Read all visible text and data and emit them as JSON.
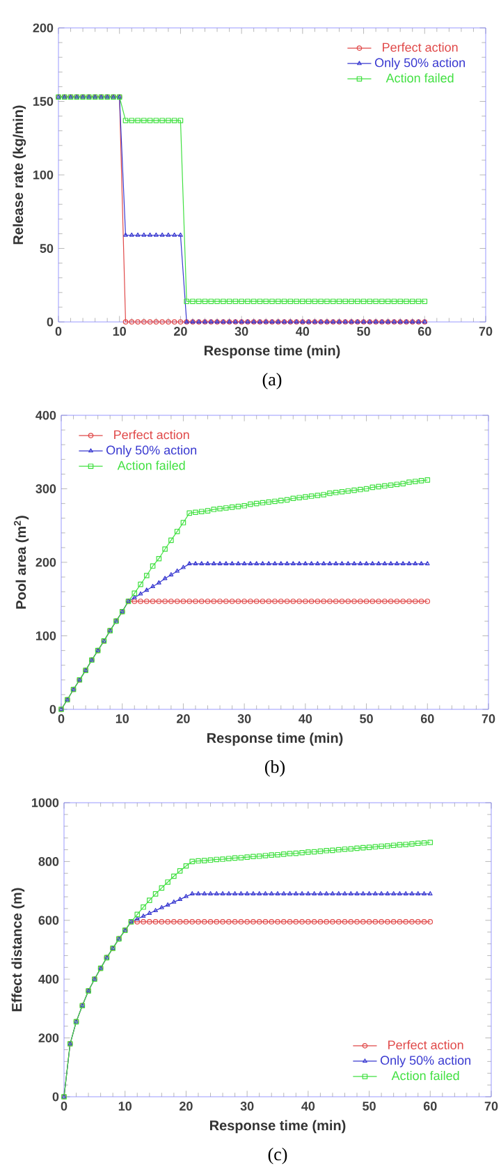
{
  "chart_data": [
    {
      "type": "line",
      "xlabel": "Response time (min)",
      "ylabel": "Release rate (kg/min)",
      "annotations": [
        "(a)"
      ],
      "xlim": [
        0,
        70
      ],
      "xticks": [
        0,
        10,
        20,
        30,
        40,
        50,
        60,
        70
      ],
      "ylim": [
        0,
        200
      ],
      "yticks": [
        0,
        50,
        100,
        150,
        200
      ],
      "legend": "top right",
      "grid": false,
      "x": [
        0,
        1,
        2,
        3,
        4,
        5,
        6,
        7,
        8,
        9,
        10,
        11,
        12,
        13,
        14,
        15,
        16,
        17,
        18,
        19,
        20,
        21,
        22,
        23,
        24,
        25,
        26,
        27,
        28,
        29,
        30,
        31,
        32,
        33,
        34,
        35,
        36,
        37,
        38,
        39,
        40,
        41,
        42,
        43,
        44,
        45,
        46,
        47,
        48,
        49,
        50,
        51,
        52,
        53,
        54,
        55,
        56,
        57,
        58,
        59,
        60
      ],
      "series": [
        {
          "name": "Perfect action",
          "color": "#e04848",
          "marker": "circle",
          "values": [
            153,
            153,
            153,
            153,
            153,
            153,
            153,
            153,
            153,
            153,
            153,
            0,
            0,
            0,
            0,
            0,
            0,
            0,
            0,
            0,
            0,
            0,
            0,
            0,
            0,
            0,
            0,
            0,
            0,
            0,
            0,
            0,
            0,
            0,
            0,
            0,
            0,
            0,
            0,
            0,
            0,
            0,
            0,
            0,
            0,
            0,
            0,
            0,
            0,
            0,
            0,
            0,
            0,
            0,
            0,
            0,
            0,
            0,
            0,
            0,
            0
          ]
        },
        {
          "name": "Only 50% action",
          "color": "#3838d0",
          "marker": "triangle",
          "values": [
            153,
            153,
            153,
            153,
            153,
            153,
            153,
            153,
            153,
            153,
            153,
            59,
            59,
            59,
            59,
            59,
            59,
            59,
            59,
            59,
            59,
            0,
            0,
            0,
            0,
            0,
            0,
            0,
            0,
            0,
            0,
            0,
            0,
            0,
            0,
            0,
            0,
            0,
            0,
            0,
            0,
            0,
            0,
            0,
            0,
            0,
            0,
            0,
            0,
            0,
            0,
            0,
            0,
            0,
            0,
            0,
            0,
            0,
            0,
            0,
            0
          ]
        },
        {
          "name": "Action failed",
          "color": "#40e040",
          "marker": "square",
          "values": [
            153,
            153,
            153,
            153,
            153,
            153,
            153,
            153,
            153,
            153,
            153,
            137,
            137,
            137,
            137,
            137,
            137,
            137,
            137,
            137,
            137,
            14,
            14,
            14,
            14,
            14,
            14,
            14,
            14,
            14,
            14,
            14,
            14,
            14,
            14,
            14,
            14,
            14,
            14,
            14,
            14,
            14,
            14,
            14,
            14,
            14,
            14,
            14,
            14,
            14,
            14,
            14,
            14,
            14,
            14,
            14,
            14,
            14,
            14,
            14,
            14
          ]
        }
      ]
    },
    {
      "type": "line",
      "xlabel": "Response time (min)",
      "ylabel": "Pool area (m$^{2}$)",
      "annotations": [
        "(b)"
      ],
      "xlim": [
        0,
        70
      ],
      "xticks": [
        0,
        10,
        20,
        30,
        40,
        50,
        60,
        70
      ],
      "ylim": [
        0,
        400
      ],
      "yticks": [
        0,
        100,
        200,
        300,
        400
      ],
      "legend": "top left",
      "grid": false,
      "x": [
        0,
        1,
        2,
        3,
        4,
        5,
        6,
        7,
        8,
        9,
        10,
        11,
        12,
        13,
        14,
        15,
        16,
        17,
        18,
        19,
        20,
        21,
        22,
        23,
        24,
        25,
        26,
        27,
        28,
        29,
        30,
        31,
        32,
        33,
        34,
        35,
        36,
        37,
        38,
        39,
        40,
        41,
        42,
        43,
        44,
        45,
        46,
        47,
        48,
        49,
        50,
        51,
        52,
        53,
        54,
        55,
        56,
        57,
        58,
        59,
        60
      ],
      "series": [
        {
          "name": "Perfect action",
          "color": "#e04848",
          "marker": "circle",
          "values": [
            0,
            13,
            27,
            40,
            53,
            67,
            80,
            93,
            107,
            120,
            133,
            147,
            147,
            147,
            147,
            147,
            147,
            147,
            147,
            147,
            147,
            147,
            147,
            147,
            147,
            147,
            147,
            147,
            147,
            147,
            147,
            147,
            147,
            147,
            147,
            147,
            147,
            147,
            147,
            147,
            147,
            147,
            147,
            147,
            147,
            147,
            147,
            147,
            147,
            147,
            147,
            147,
            147,
            147,
            147,
            147,
            147,
            147,
            147,
            147,
            147
          ]
        },
        {
          "name": "Only 50% action",
          "color": "#3838d0",
          "marker": "triangle",
          "values": [
            0,
            13,
            27,
            40,
            53,
            67,
            80,
            93,
            107,
            120,
            133,
            147,
            152,
            157,
            162,
            167,
            172,
            178,
            183,
            188,
            193,
            198,
            198,
            198,
            198,
            198,
            198,
            198,
            198,
            198,
            198,
            198,
            198,
            198,
            198,
            198,
            198,
            198,
            198,
            198,
            198,
            198,
            198,
            198,
            198,
            198,
            198,
            198,
            198,
            198,
            198,
            198,
            198,
            198,
            198,
            198,
            198,
            198,
            198,
            198,
            198
          ]
        },
        {
          "name": "Action failed",
          "color": "#40e040",
          "marker": "square",
          "values": [
            0,
            13,
            27,
            40,
            53,
            67,
            80,
            93,
            107,
            120,
            133,
            147,
            158,
            170,
            182,
            195,
            205,
            218,
            230,
            242,
            254,
            267,
            268,
            269,
            270,
            272,
            273,
            274,
            275,
            276,
            277,
            279,
            280,
            281,
            282,
            283,
            284,
            285,
            287,
            288,
            289,
            290,
            291,
            292,
            294,
            295,
            296,
            297,
            298,
            299,
            300,
            302,
            303,
            304,
            305,
            306,
            307,
            309,
            310,
            311,
            312
          ]
        }
      ]
    },
    {
      "type": "line",
      "xlabel": "Response time (min)",
      "ylabel": "Effect distance (m)",
      "annotations": [
        "(c)"
      ],
      "xlim": [
        0,
        70
      ],
      "xticks": [
        0,
        10,
        20,
        30,
        40,
        50,
        60,
        70
      ],
      "ylim": [
        0,
        1000
      ],
      "yticks": [
        0,
        200,
        400,
        600,
        800,
        1000
      ],
      "legend": "bottom right",
      "grid": false,
      "x": [
        0,
        1,
        2,
        3,
        4,
        5,
        6,
        7,
        8,
        9,
        10,
        11,
        12,
        13,
        14,
        15,
        16,
        17,
        18,
        19,
        20,
        21,
        22,
        23,
        24,
        25,
        26,
        27,
        28,
        29,
        30,
        31,
        32,
        33,
        34,
        35,
        36,
        37,
        38,
        39,
        40,
        41,
        42,
        43,
        44,
        45,
        46,
        47,
        48,
        49,
        50,
        51,
        52,
        53,
        54,
        55,
        56,
        57,
        58,
        59,
        60
      ],
      "series": [
        {
          "name": "Perfect action",
          "color": "#e04848",
          "marker": "circle",
          "values": [
            0,
            180,
            255,
            310,
            360,
            400,
            437,
            473,
            505,
            537,
            566,
            595,
            595,
            595,
            595,
            595,
            595,
            595,
            595,
            595,
            595,
            595,
            595,
            595,
            595,
            595,
            595,
            595,
            595,
            595,
            595,
            595,
            595,
            595,
            595,
            595,
            595,
            595,
            595,
            595,
            595,
            595,
            595,
            595,
            595,
            595,
            595,
            595,
            595,
            595,
            595,
            595,
            595,
            595,
            595,
            595,
            595,
            595,
            595,
            595,
            595
          ]
        },
        {
          "name": "Only 50% action",
          "color": "#3838d0",
          "marker": "triangle",
          "values": [
            0,
            180,
            255,
            310,
            360,
            400,
            437,
            473,
            505,
            537,
            566,
            595,
            605,
            614,
            624,
            633,
            643,
            652,
            662,
            671,
            681,
            690,
            690,
            690,
            690,
            690,
            690,
            690,
            690,
            690,
            690,
            690,
            690,
            690,
            690,
            690,
            690,
            690,
            690,
            690,
            690,
            690,
            690,
            690,
            690,
            690,
            690,
            690,
            690,
            690,
            690,
            690,
            690,
            690,
            690,
            690,
            690,
            690,
            690,
            690,
            690
          ]
        },
        {
          "name": "Action failed",
          "color": "#40e040",
          "marker": "square",
          "values": [
            0,
            180,
            255,
            310,
            360,
            400,
            437,
            473,
            505,
            537,
            566,
            595,
            620,
            645,
            668,
            690,
            710,
            730,
            750,
            768,
            785,
            800,
            802,
            803,
            805,
            807,
            808,
            810,
            812,
            813,
            815,
            817,
            818,
            820,
            822,
            823,
            825,
            827,
            828,
            830,
            832,
            833,
            835,
            837,
            838,
            840,
            842,
            843,
            845,
            847,
            848,
            850,
            852,
            853,
            855,
            857,
            858,
            860,
            862,
            863,
            865
          ]
        }
      ]
    }
  ]
}
